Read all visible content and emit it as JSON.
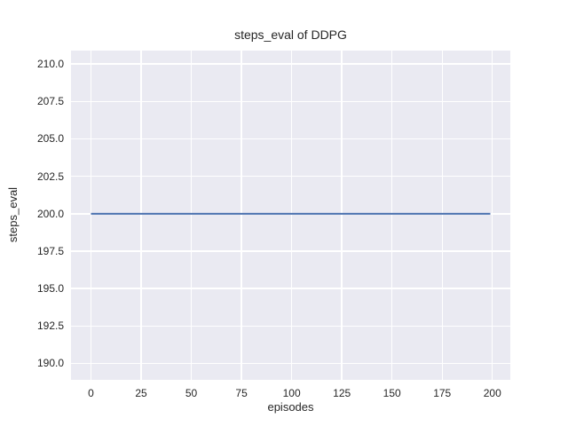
{
  "figure": {
    "background": "#ffffff"
  },
  "chart_data": {
    "type": "line",
    "title": "steps_eval of DDPG",
    "xlabel": "episodes",
    "ylabel": "steps_eval",
    "xlim": [
      -9.95,
      208.95
    ],
    "ylim": [
      188.9,
      210.9
    ],
    "xticks": [
      0,
      25,
      50,
      75,
      100,
      125,
      150,
      175,
      200
    ],
    "xtick_labels": [
      "0",
      "25",
      "50",
      "75",
      "100",
      "125",
      "150",
      "175",
      "200"
    ],
    "yticks": [
      190.0,
      192.5,
      195.0,
      197.5,
      200.0,
      202.5,
      205.0,
      207.5,
      210.0
    ],
    "ytick_labels": [
      "190.0",
      "192.5",
      "195.0",
      "197.5",
      "200.0",
      "202.5",
      "205.0",
      "207.5",
      "210.0"
    ],
    "grid": true,
    "legend": "none",
    "plot_bg": "#EAEAF2",
    "grid_color": "#FFFFFF",
    "text_color": "#262626",
    "series": [
      {
        "name": "steps_eval",
        "color": "#4C72B0",
        "linewidth": 2,
        "x": [
          0,
          199
        ],
        "y": [
          200,
          200
        ]
      }
    ]
  }
}
